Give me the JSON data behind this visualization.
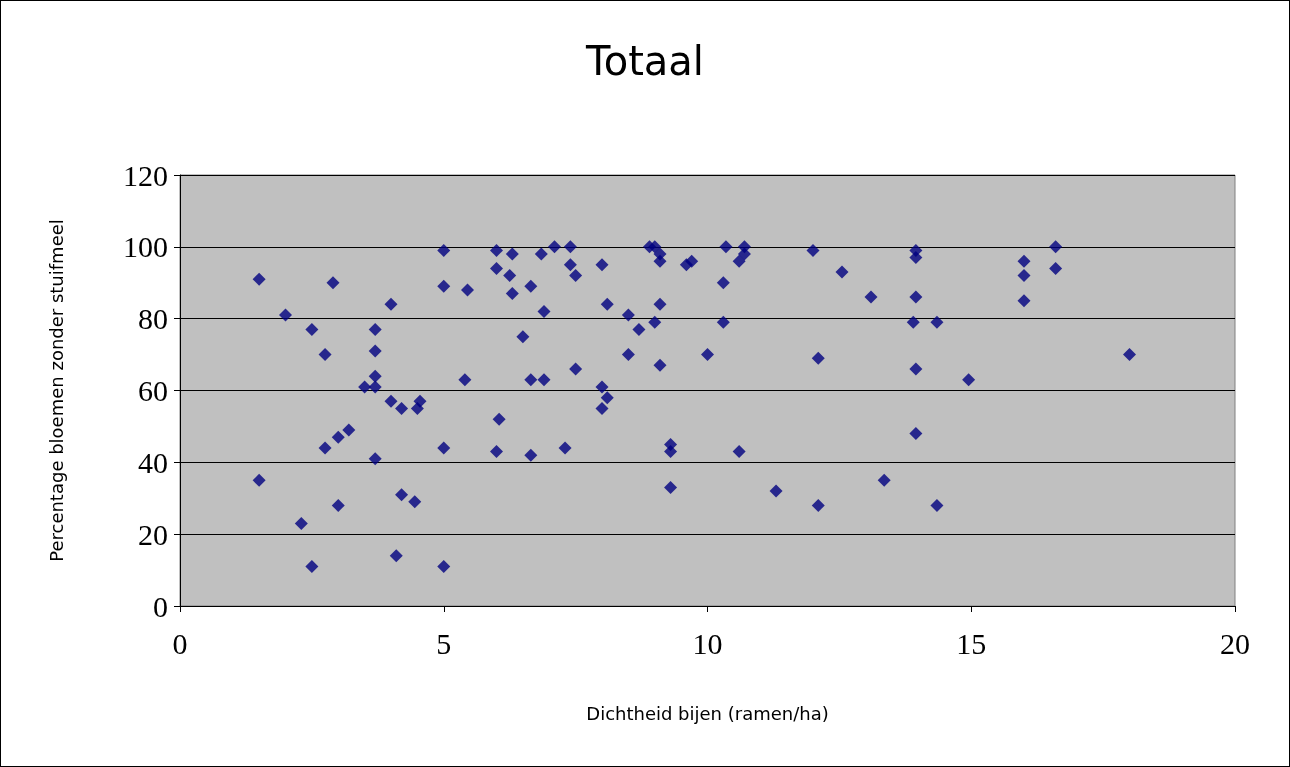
{
  "chart_data": {
    "type": "scatter",
    "title": "Totaal",
    "xlabel": "Dichtheid bijen (ramen/ha)",
    "ylabel": "Percentage bloemen zonder stuifmeel",
    "xlim": [
      0,
      20
    ],
    "xticks": [
      0,
      5,
      10,
      15,
      20
    ],
    "ylim": [
      0,
      120
    ],
    "yticks": [
      0,
      20,
      40,
      60,
      80,
      100,
      120
    ],
    "grid": "y",
    "marker": "diamond",
    "series": [
      {
        "color": "#000080",
        "x": [
          1.5,
          1.5,
          2.0,
          2.3,
          2.5,
          2.5,
          2.75,
          2.75,
          2.9,
          3.0,
          3.0,
          3.2,
          3.5,
          3.7,
          3.7,
          3.7,
          3.7,
          3.7,
          4.0,
          4.0,
          4.1,
          4.2,
          4.2,
          4.45,
          4.5,
          4.55,
          5.0,
          5.0,
          5.0,
          5.0,
          5.45,
          5.4,
          6.0,
          6.0,
          6.0,
          6.05,
          6.3,
          6.25,
          6.3,
          6.5,
          6.65,
          6.65,
          6.65,
          6.85,
          6.9,
          6.9,
          7.1,
          7.3,
          7.4,
          7.4,
          7.5,
          7.5,
          8.0,
          8.0,
          8.0,
          8.1,
          8.1,
          8.5,
          8.5,
          8.7,
          8.9,
          9.0,
          9.0,
          9.1,
          9.1,
          9.1,
          9.1,
          9.3,
          9.3,
          9.3,
          9.6,
          9.7,
          10.0,
          10.3,
          10.3,
          10.35,
          10.6,
          10.6,
          10.7,
          10.7,
          11.3,
          12.0,
          12.1,
          12.1,
          12.55,
          13.1,
          13.35,
          13.9,
          13.95,
          13.95,
          13.95,
          13.95,
          13.95,
          14.35,
          14.35,
          14.95,
          16.0,
          16.0,
          16.0,
          16.6,
          16.6,
          18.0
        ],
        "values": [
          91,
          35,
          81,
          23,
          77,
          11,
          70,
          44,
          90,
          28,
          47,
          49,
          61,
          77,
          71,
          64,
          61,
          41,
          84,
          57,
          14,
          55,
          31,
          29,
          55,
          57,
          99,
          89,
          44,
          11,
          88,
          63,
          99,
          94,
          43,
          52,
          98,
          92,
          87,
          75,
          89,
          63,
          42,
          98,
          82,
          63,
          100,
          44,
          100,
          95,
          92,
          66,
          95,
          61,
          55,
          58,
          84,
          81,
          70,
          77,
          100,
          79,
          100,
          98,
          96,
          84,
          67,
          45,
          43,
          33,
          95,
          96,
          70,
          90,
          79,
          100,
          96,
          43,
          98,
          100,
          32,
          99,
          69,
          28,
          93,
          86,
          35,
          79,
          99,
          97,
          86,
          66,
          48,
          79,
          28,
          63,
          96,
          92,
          85,
          100,
          94,
          70
        ]
      }
    ]
  }
}
